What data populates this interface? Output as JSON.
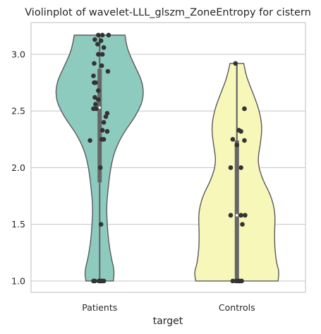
{
  "chart_data": {
    "type": "violin",
    "title": "Violinplot of wavelet-LLL_glszm_ZoneEntropy for cistern",
    "xlabel": "target",
    "ylabel": "",
    "ylim": [
      0.9,
      3.28
    ],
    "yticks": [
      "1.0",
      "1.5",
      "2.0",
      "2.5",
      "3.0"
    ],
    "ytick_values": [
      1.0,
      1.5,
      2.0,
      2.5,
      3.0
    ],
    "grid": true,
    "categories": [
      "Patients",
      "Controls"
    ],
    "colors": [
      "#8ecbbf",
      "#f7f7b9"
    ],
    "series": [
      {
        "name": "Patients",
        "min": 1.0,
        "q1": 1.87,
        "median": 2.53,
        "q3": 2.87,
        "max": 3.17,
        "density": [
          [
            1.0,
            0.2
          ],
          [
            1.08,
            0.22
          ],
          [
            1.2,
            0.17
          ],
          [
            1.35,
            0.13
          ],
          [
            1.5,
            0.11
          ],
          [
            1.65,
            0.1
          ],
          [
            1.8,
            0.12
          ],
          [
            2.0,
            0.16
          ],
          [
            2.15,
            0.22
          ],
          [
            2.3,
            0.34
          ],
          [
            2.45,
            0.52
          ],
          [
            2.6,
            0.64
          ],
          [
            2.75,
            0.63
          ],
          [
            2.9,
            0.51
          ],
          [
            3.05,
            0.4
          ],
          [
            3.17,
            0.37
          ]
        ],
        "points": [
          [
            3.17,
            -0.02
          ],
          [
            3.17,
            0.04
          ],
          [
            3.17,
            0.13
          ],
          [
            3.13,
            -0.07
          ],
          [
            3.12,
            0.02
          ],
          [
            3.09,
            -0.03
          ],
          [
            3.06,
            0.06
          ],
          [
            3.0,
            -0.02
          ],
          [
            3.0,
            0.04
          ],
          [
            2.92,
            -0.08
          ],
          [
            2.9,
            0.03
          ],
          [
            2.85,
            0.12
          ],
          [
            2.81,
            -0.09
          ],
          [
            2.75,
            -0.08
          ],
          [
            2.75,
            -0.06
          ],
          [
            2.68,
            -0.02
          ],
          [
            2.62,
            -0.07
          ],
          [
            2.6,
            -0.02
          ],
          [
            2.56,
            -0.06
          ],
          [
            2.52,
            -0.05
          ],
          [
            2.52,
            -0.09
          ],
          [
            2.48,
            0.11
          ],
          [
            2.45,
            0.09
          ],
          [
            2.4,
            0.06
          ],
          [
            2.33,
            0.04
          ],
          [
            2.32,
            0.11
          ],
          [
            2.25,
            0.03
          ],
          [
            2.25,
            0.06
          ],
          [
            2.24,
            -0.14
          ],
          [
            2.0,
            0.01
          ],
          [
            1.5,
            0.02
          ],
          [
            1.0,
            -0.09
          ],
          [
            1.0,
            -0.07
          ],
          [
            1.0,
            -0.01
          ],
          [
            1.0,
            0.01
          ],
          [
            1.0,
            0.03
          ],
          [
            1.0,
            0.06
          ]
        ]
      },
      {
        "name": "Controls",
        "min": 1.0,
        "q1": 1.0,
        "median": 1.58,
        "q3": 2.24,
        "max": 2.92,
        "density": [
          [
            1.0,
            0.6
          ],
          [
            1.08,
            0.62
          ],
          [
            1.15,
            0.58
          ],
          [
            1.3,
            0.55
          ],
          [
            1.45,
            0.55
          ],
          [
            1.6,
            0.56
          ],
          [
            1.75,
            0.5
          ],
          [
            1.9,
            0.37
          ],
          [
            2.05,
            0.3
          ],
          [
            2.2,
            0.34
          ],
          [
            2.35,
            0.37
          ],
          [
            2.5,
            0.33
          ],
          [
            2.65,
            0.24
          ],
          [
            2.8,
            0.14
          ],
          [
            2.92,
            0.1
          ]
        ],
        "points": [
          [
            2.92,
            -0.02
          ],
          [
            2.52,
            0.11
          ],
          [
            2.33,
            0.03
          ],
          [
            2.32,
            0.06
          ],
          [
            2.25,
            -0.06
          ],
          [
            2.24,
            0.11
          ],
          [
            2.2,
            0.0
          ],
          [
            2.0,
            -0.09
          ],
          [
            2.0,
            0.06
          ],
          [
            1.58,
            -0.09
          ],
          [
            1.58,
            0.06
          ],
          [
            1.58,
            0.12
          ],
          [
            1.5,
            0.08
          ],
          [
            1.0,
            -0.06
          ],
          [
            1.0,
            -0.01
          ],
          [
            1.0,
            0.02
          ],
          [
            1.0,
            0.04
          ],
          [
            1.0,
            0.07
          ]
        ]
      }
    ]
  }
}
